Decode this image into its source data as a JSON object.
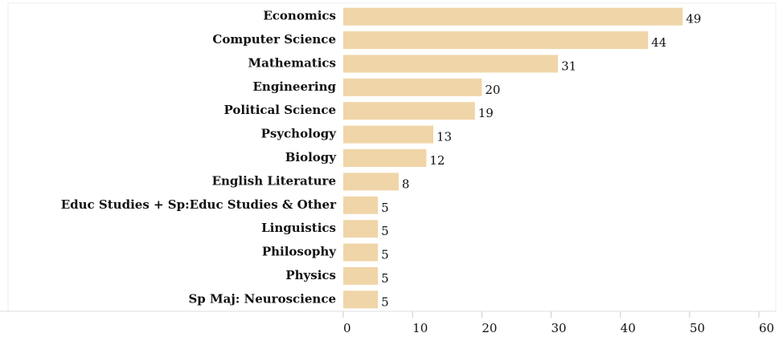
{
  "chart_data": {
    "type": "bar",
    "orientation": "horizontal",
    "categories": [
      "Economics",
      "Computer Science",
      "Mathematics",
      "Engineering",
      "Political Science",
      "Psychology",
      "Biology",
      "English Literature",
      "Educ Studies + Sp:Educ Studies & Other",
      "Linguistics",
      "Philosophy",
      "Physics",
      "Sp Maj: Neuroscience"
    ],
    "values": [
      49,
      44,
      31,
      20,
      19,
      13,
      12,
      8,
      5,
      5,
      5,
      5,
      5
    ],
    "color": "#f0d5a8",
    "xlim": [
      0,
      60
    ],
    "xticks": [
      0,
      10,
      20,
      30,
      40,
      50,
      60
    ]
  }
}
